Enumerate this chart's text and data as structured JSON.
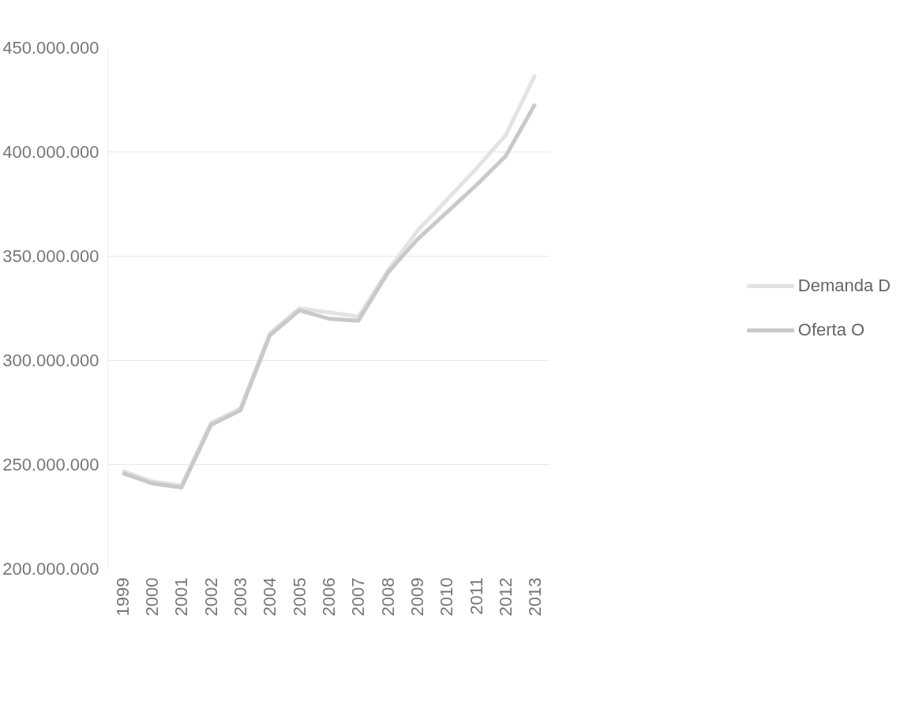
{
  "chart_data": {
    "type": "line",
    "categories": [
      "1999",
      "2000",
      "2001",
      "2002",
      "2003",
      "2004",
      "2005",
      "2006",
      "2007",
      "2008",
      "2009",
      "2010",
      "2011",
      "2012",
      "2013"
    ],
    "series": [
      {
        "name": "Demanda D",
        "color": "#e3e3e3",
        "values": [
          247000000,
          242000000,
          240000000,
          270000000,
          277000000,
          313000000,
          325000000,
          323000000,
          321000000,
          343000000,
          362000000,
          377000000,
          392000000,
          408000000,
          437000000
        ]
      },
      {
        "name": "Oferta O",
        "color": "#c9c9c9",
        "values": [
          246000000,
          241000000,
          239000000,
          269000000,
          276000000,
          312000000,
          324000000,
          320000000,
          319000000,
          342000000,
          358000000,
          371000000,
          384000000,
          398000000,
          423000000
        ]
      }
    ],
    "ylim": [
      200000000,
      450000000
    ],
    "yticks": [
      {
        "value": 200000000,
        "label": "200.000.000"
      },
      {
        "value": 250000000,
        "label": "250.000.000"
      },
      {
        "value": 300000000,
        "label": "300.000.000"
      },
      {
        "value": 350000000,
        "label": "350.000.000"
      },
      {
        "value": 400000000,
        "label": "400.000.000"
      },
      {
        "value": 450000000,
        "label": "450.000.000"
      }
    ],
    "grid": "y",
    "legend": "right",
    "marker": "none",
    "line_style": "solid"
  }
}
